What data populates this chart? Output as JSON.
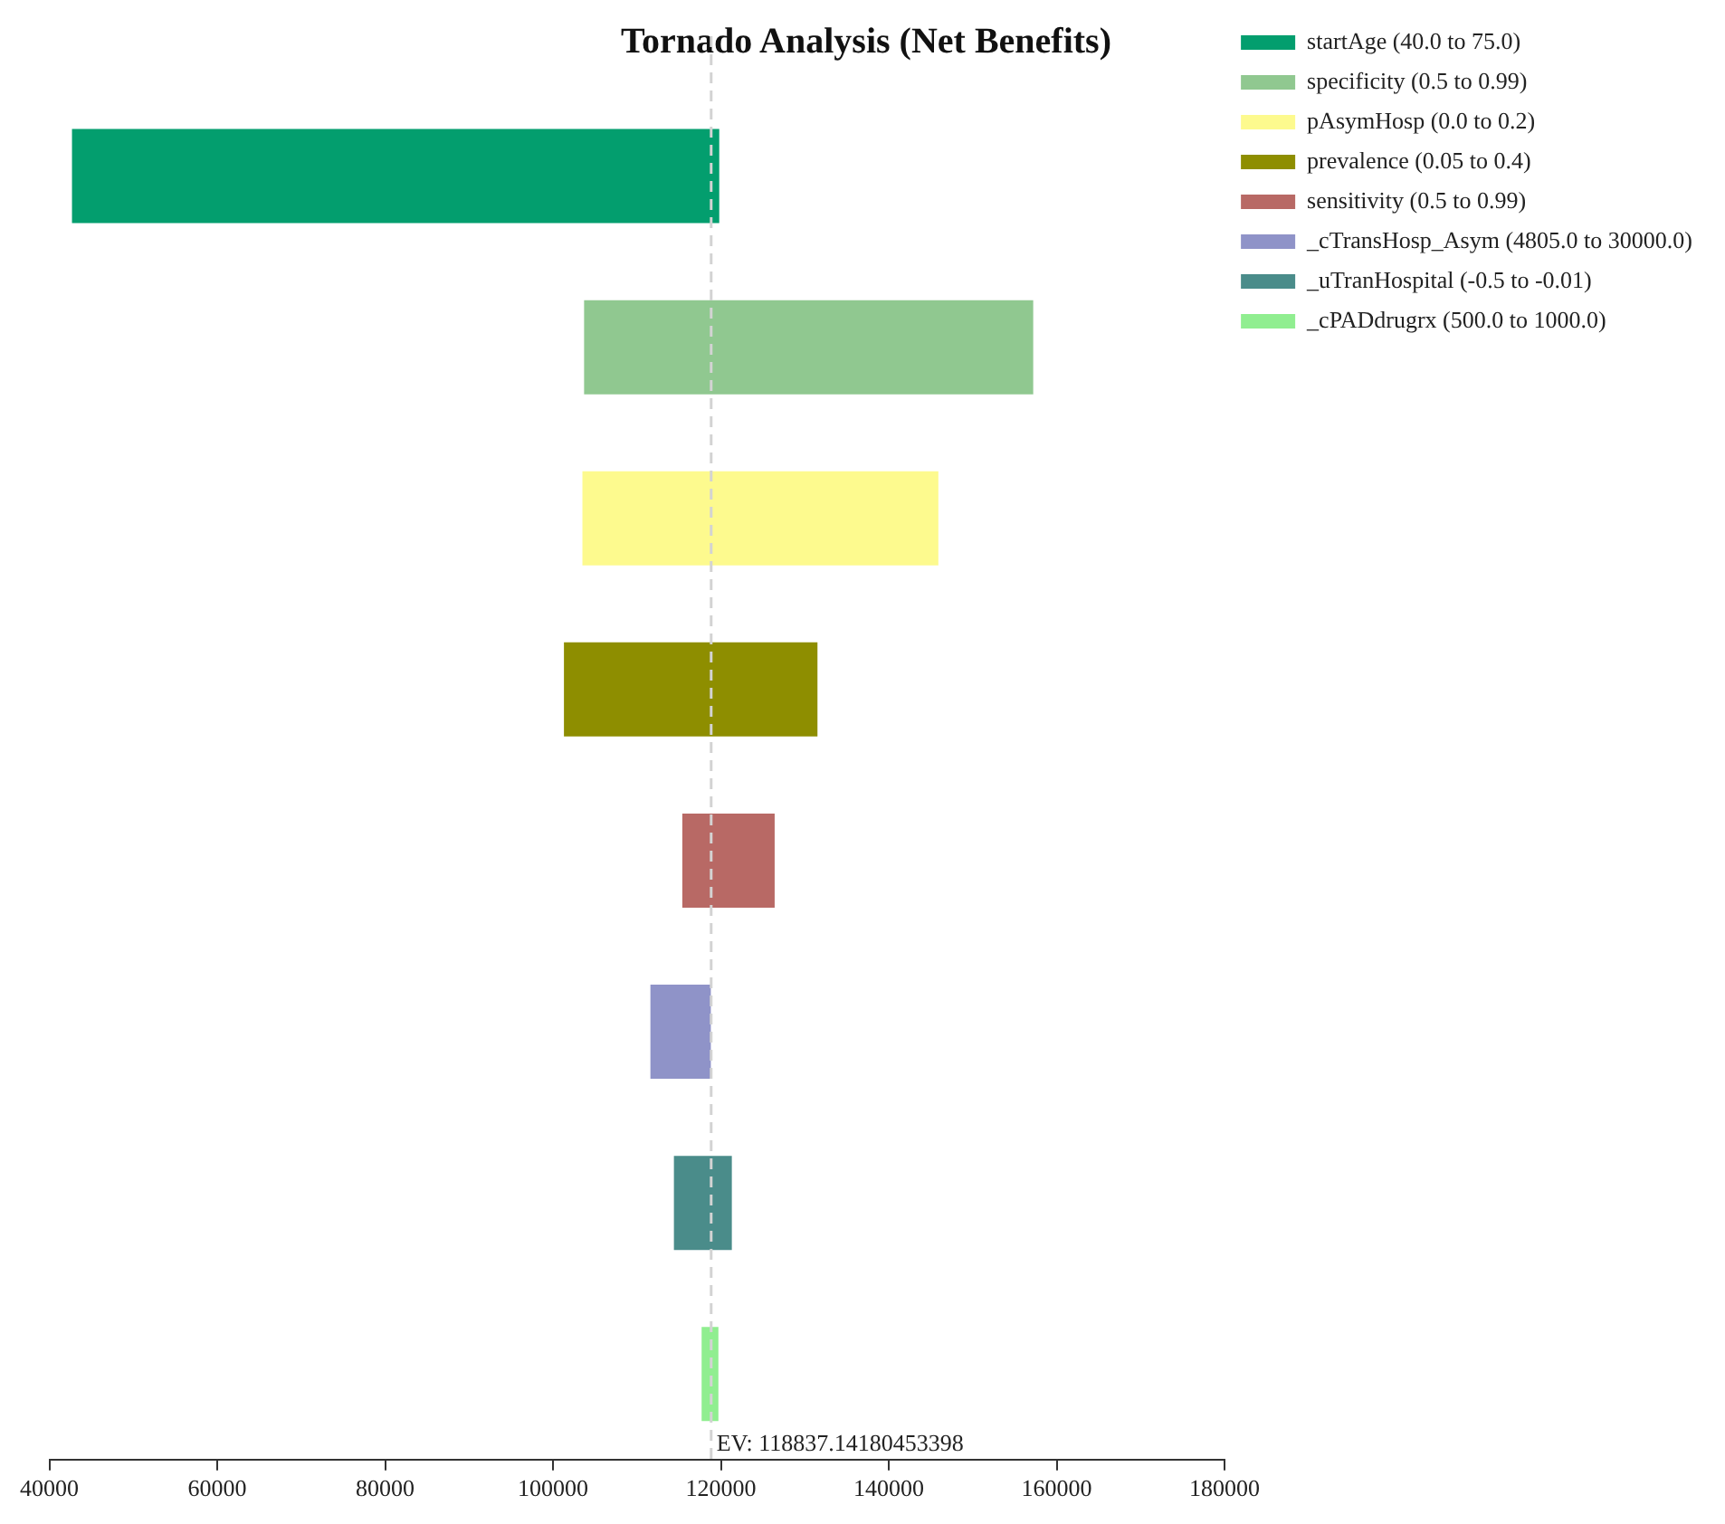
{
  "chart_data": {
    "type": "bar",
    "orientation": "horizontal",
    "title": "Tornado Analysis (Net Benefits)",
    "categories": [
      null,
      null,
      null,
      null,
      null,
      null,
      null,
      null
    ],
    "series": [
      {
        "name": "startAge (40.0 to 75.0)",
        "color": "#039e6e",
        "base": [
          42700,
          null,
          null,
          null,
          null,
          null,
          null,
          null
        ],
        "values": [
          77100,
          null,
          null,
          null,
          null,
          null,
          null,
          null
        ]
      },
      {
        "name": "specificity (0.5 to 0.99)",
        "color": "#90c890",
        "base": [
          null,
          103700,
          null,
          null,
          null,
          null,
          null,
          null
        ],
        "values": [
          null,
          53500,
          null,
          null,
          null,
          null,
          null,
          null
        ]
      },
      {
        "name": "pAsymHosp (0.0 to 0.2)",
        "color": "#fdfa8e",
        "base": [
          null,
          null,
          103500,
          null,
          null,
          null,
          null,
          null
        ],
        "values": [
          null,
          null,
          42400,
          null,
          null,
          null,
          null,
          null
        ]
      },
      {
        "name": "prevalence (0.05 to 0.4)",
        "color": "#8e8e00",
        "base": [
          null,
          null,
          null,
          101300,
          null,
          null,
          null,
          null
        ],
        "values": [
          null,
          null,
          null,
          30200,
          null,
          null,
          null,
          null
        ]
      },
      {
        "name": "sensitivity (0.5 to 0.99)",
        "color": "#b86965",
        "base": [
          null,
          null,
          null,
          null,
          115400,
          null,
          null,
          null
        ],
        "values": [
          null,
          null,
          null,
          null,
          11000,
          null,
          null,
          null
        ]
      },
      {
        "name": "_cTransHosp_Asym (4805.0 to 30000.0)",
        "color": "#8f93c8",
        "base": [
          null,
          null,
          null,
          null,
          null,
          111600,
          null,
          null
        ],
        "values": [
          null,
          null,
          null,
          null,
          null,
          7200,
          null,
          null
        ]
      },
      {
        "name": "_uTranHospital (-0.5 to -0.01)",
        "color": "#4a8c8a",
        "base": [
          null,
          null,
          null,
          null,
          null,
          null,
          114400,
          null
        ],
        "values": [
          null,
          null,
          null,
          null,
          null,
          null,
          6900,
          null
        ]
      },
      {
        "name": "_cPADdrugrx (500.0 to 1000.0)",
        "color": "#90ee90",
        "base": [
          null,
          null,
          null,
          null,
          null,
          null,
          null,
          117700
        ],
        "values": [
          null,
          null,
          null,
          null,
          null,
          null,
          null,
          2000
        ]
      }
    ],
    "xlim": [
      40000,
      180000
    ],
    "xticks": [
      40000,
      60000,
      80000,
      100000,
      120000,
      140000,
      160000,
      180000
    ],
    "ref_lines": [
      {
        "axis": "x",
        "value": 118837.14180453398,
        "label": "EV: 118837.14180453398",
        "color": "#d3d3d3",
        "line_style": "dashed"
      }
    ],
    "grid": false,
    "legend": "top right"
  }
}
